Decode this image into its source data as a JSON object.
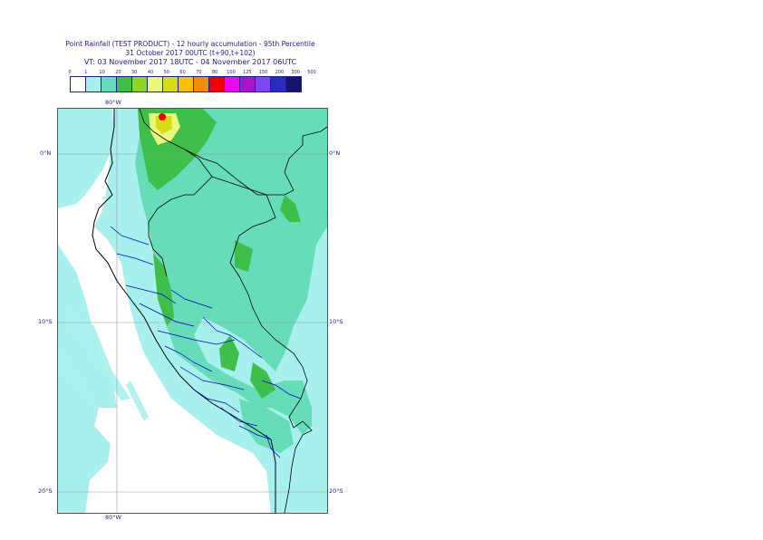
{
  "header": {
    "line1": "Point Rainfall (TEST PRODUCT) - 12 hourly accumulation - 95th Percentile",
    "line2": "31 October 2017 00UTC (t+90,t+102)",
    "line3": "VT: 03 November 2017 18UTC - 04 November 2017 06UTC"
  },
  "scale": {
    "thresholds": [
      "0",
      "1",
      "10",
      "20",
      "30",
      "40",
      "50",
      "60",
      "70",
      "80",
      "100",
      "125",
      "150",
      "200",
      "300",
      "500"
    ],
    "colors": [
      "#ffffff",
      "#a8f0ee",
      "#66dcb8",
      "#3ebe4a",
      "#8cd42a",
      "#e8f87a",
      "#d8dc16",
      "#f6c006",
      "#f08c0a",
      "#f20000",
      "#e80aec",
      "#a416c8",
      "#7c46f0",
      "#2a2ac0",
      "#14146e"
    ]
  },
  "map": {
    "lon_top": "80°W",
    "lon_bottom": "80°W",
    "lat_0_left": "0°N",
    "lat_0_right": "0°N",
    "lat_10_left": "10°S",
    "lat_10_right": "10°S",
    "lat_20_left": "20°S",
    "lat_20_right": "20°S",
    "colors": {
      "ocean_light": "#a8f0ee",
      "land_green": "#66dcb8",
      "heavy": "#3ebe4a",
      "intense": "#e8f87a",
      "peak": "#f20000",
      "border": "#000000",
      "region": "#0000c8"
    }
  }
}
